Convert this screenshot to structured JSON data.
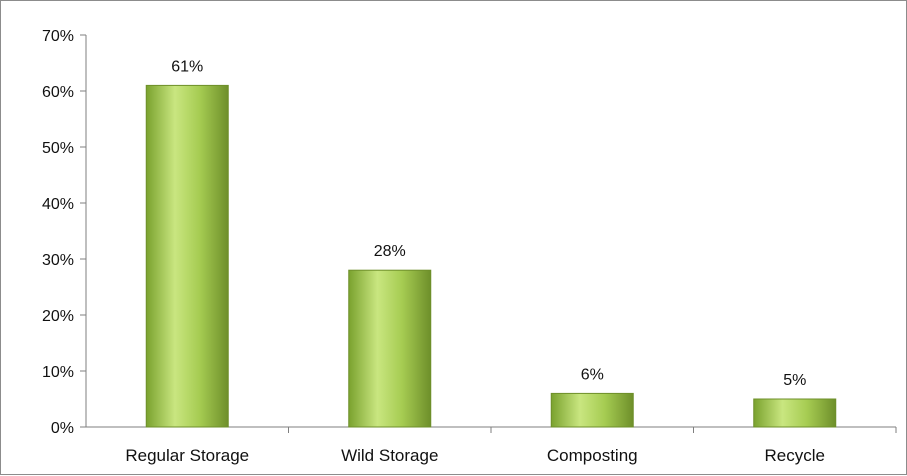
{
  "chart_data": {
    "type": "bar",
    "categories": [
      "Regular Storage",
      "Wild Storage",
      "Composting",
      "Recycle"
    ],
    "values": [
      61,
      28,
      6,
      5
    ],
    "data_labels": [
      "61%",
      "28%",
      "6%",
      "5%"
    ],
    "title": "",
    "xlabel": "",
    "ylabel": "",
    "ylim": [
      0,
      70
    ],
    "yticks": [
      0,
      10,
      20,
      30,
      40,
      50,
      60,
      70
    ],
    "ytick_labels": [
      "0%",
      "10%",
      "20%",
      "30%",
      "40%",
      "50%",
      "60%",
      "70%"
    ],
    "grid": false,
    "legend": "none",
    "bar_color": "#8db43c",
    "bar_highlight": "#c9e680",
    "bar_edge": "#6e8f2a"
  }
}
